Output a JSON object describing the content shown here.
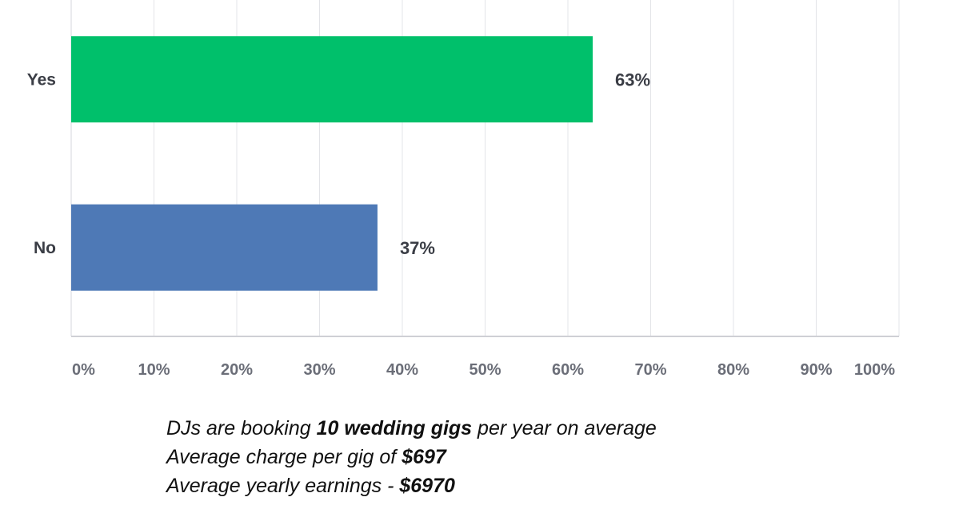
{
  "chart_data": {
    "type": "bar",
    "orientation": "horizontal",
    "categories": [
      "Yes",
      "No"
    ],
    "values": [
      63,
      37
    ],
    "value_labels": [
      "63%",
      "37%"
    ],
    "bar_colors": [
      "#00c06b",
      "#4e79b6"
    ],
    "xlim": [
      0,
      100
    ],
    "x_ticks": [
      "0%",
      "10%",
      "20%",
      "30%",
      "40%",
      "50%",
      "60%",
      "70%",
      "80%",
      "90%",
      "100%"
    ],
    "grid": "vertical",
    "title": "",
    "xlabel": "",
    "ylabel": ""
  },
  "notes": {
    "line1": {
      "pre": "DJs are booking ",
      "bold": "10 wedding gigs",
      "post": " per year on average"
    },
    "line2": {
      "pre": "Average charge per gig of ",
      "bold": "$697"
    },
    "line3": {
      "pre": "Average yearly earnings - ",
      "bold": "$6970"
    }
  }
}
